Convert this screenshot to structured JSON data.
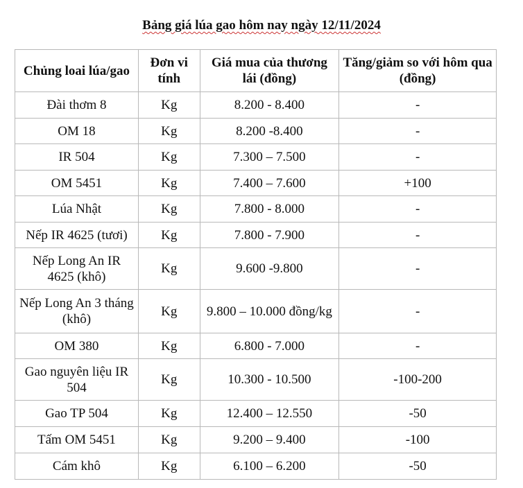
{
  "title": "Bảng giá lúa gao hôm nay ngày 12/11/2024",
  "columns": [
    "Chủng loai lúa/gao",
    "Đơn vi tính",
    "Giá mua của thương lái (đồng)",
    "Tăng/giảm so với hôm qua (đồng)"
  ],
  "rows": [
    {
      "type": "Đài thơm 8",
      "unit": "Kg",
      "price": "8.200 - 8.400",
      "change": "-"
    },
    {
      "type": "OM 18",
      "unit": "Kg",
      "price": "8.200 -8.400",
      "change": "-"
    },
    {
      "type": "IR 504",
      "unit": "Kg",
      "price": "7.300 – 7.500",
      "change": "-"
    },
    {
      "type": "OM 5451",
      "unit": "Kg",
      "price": "7.400 – 7.600",
      "change": "+100"
    },
    {
      "type": "Lúa Nhật",
      "unit": "Kg",
      "price": "7.800 - 8.000",
      "change": "-"
    },
    {
      "type": "Nếp IR 4625 (tươi)",
      "unit": "Kg",
      "price": "7.800 - 7.900",
      "change": "-"
    },
    {
      "type": "Nếp Long An IR 4625 (khô)",
      "unit": "Kg",
      "price": "9.600 -9.800",
      "change": "-"
    },
    {
      "type": "Nếp Long An 3 tháng (khô)",
      "unit": "Kg",
      "price": "9.800 – 10.000 đồng/kg",
      "change": "-"
    },
    {
      "type": "OM 380",
      "unit": "Kg",
      "price": "6.800 - 7.000",
      "change": "-"
    },
    {
      "type": "Gao nguyên liệu IR 504",
      "unit": "Kg",
      "price": "10.300 - 10.500",
      "change": "-100-200"
    },
    {
      "type": "Gao TP 504",
      "unit": "Kg",
      "price": "12.400 – 12.550",
      "change": "-50"
    },
    {
      "type": "Tấm OM 5451",
      "unit": "Kg",
      "price": "9.200 – 9.400",
      "change": "-100"
    },
    {
      "type": "Cám khô",
      "unit": "Kg",
      "price": "6.100 – 6.200",
      "change": "-50"
    }
  ]
}
